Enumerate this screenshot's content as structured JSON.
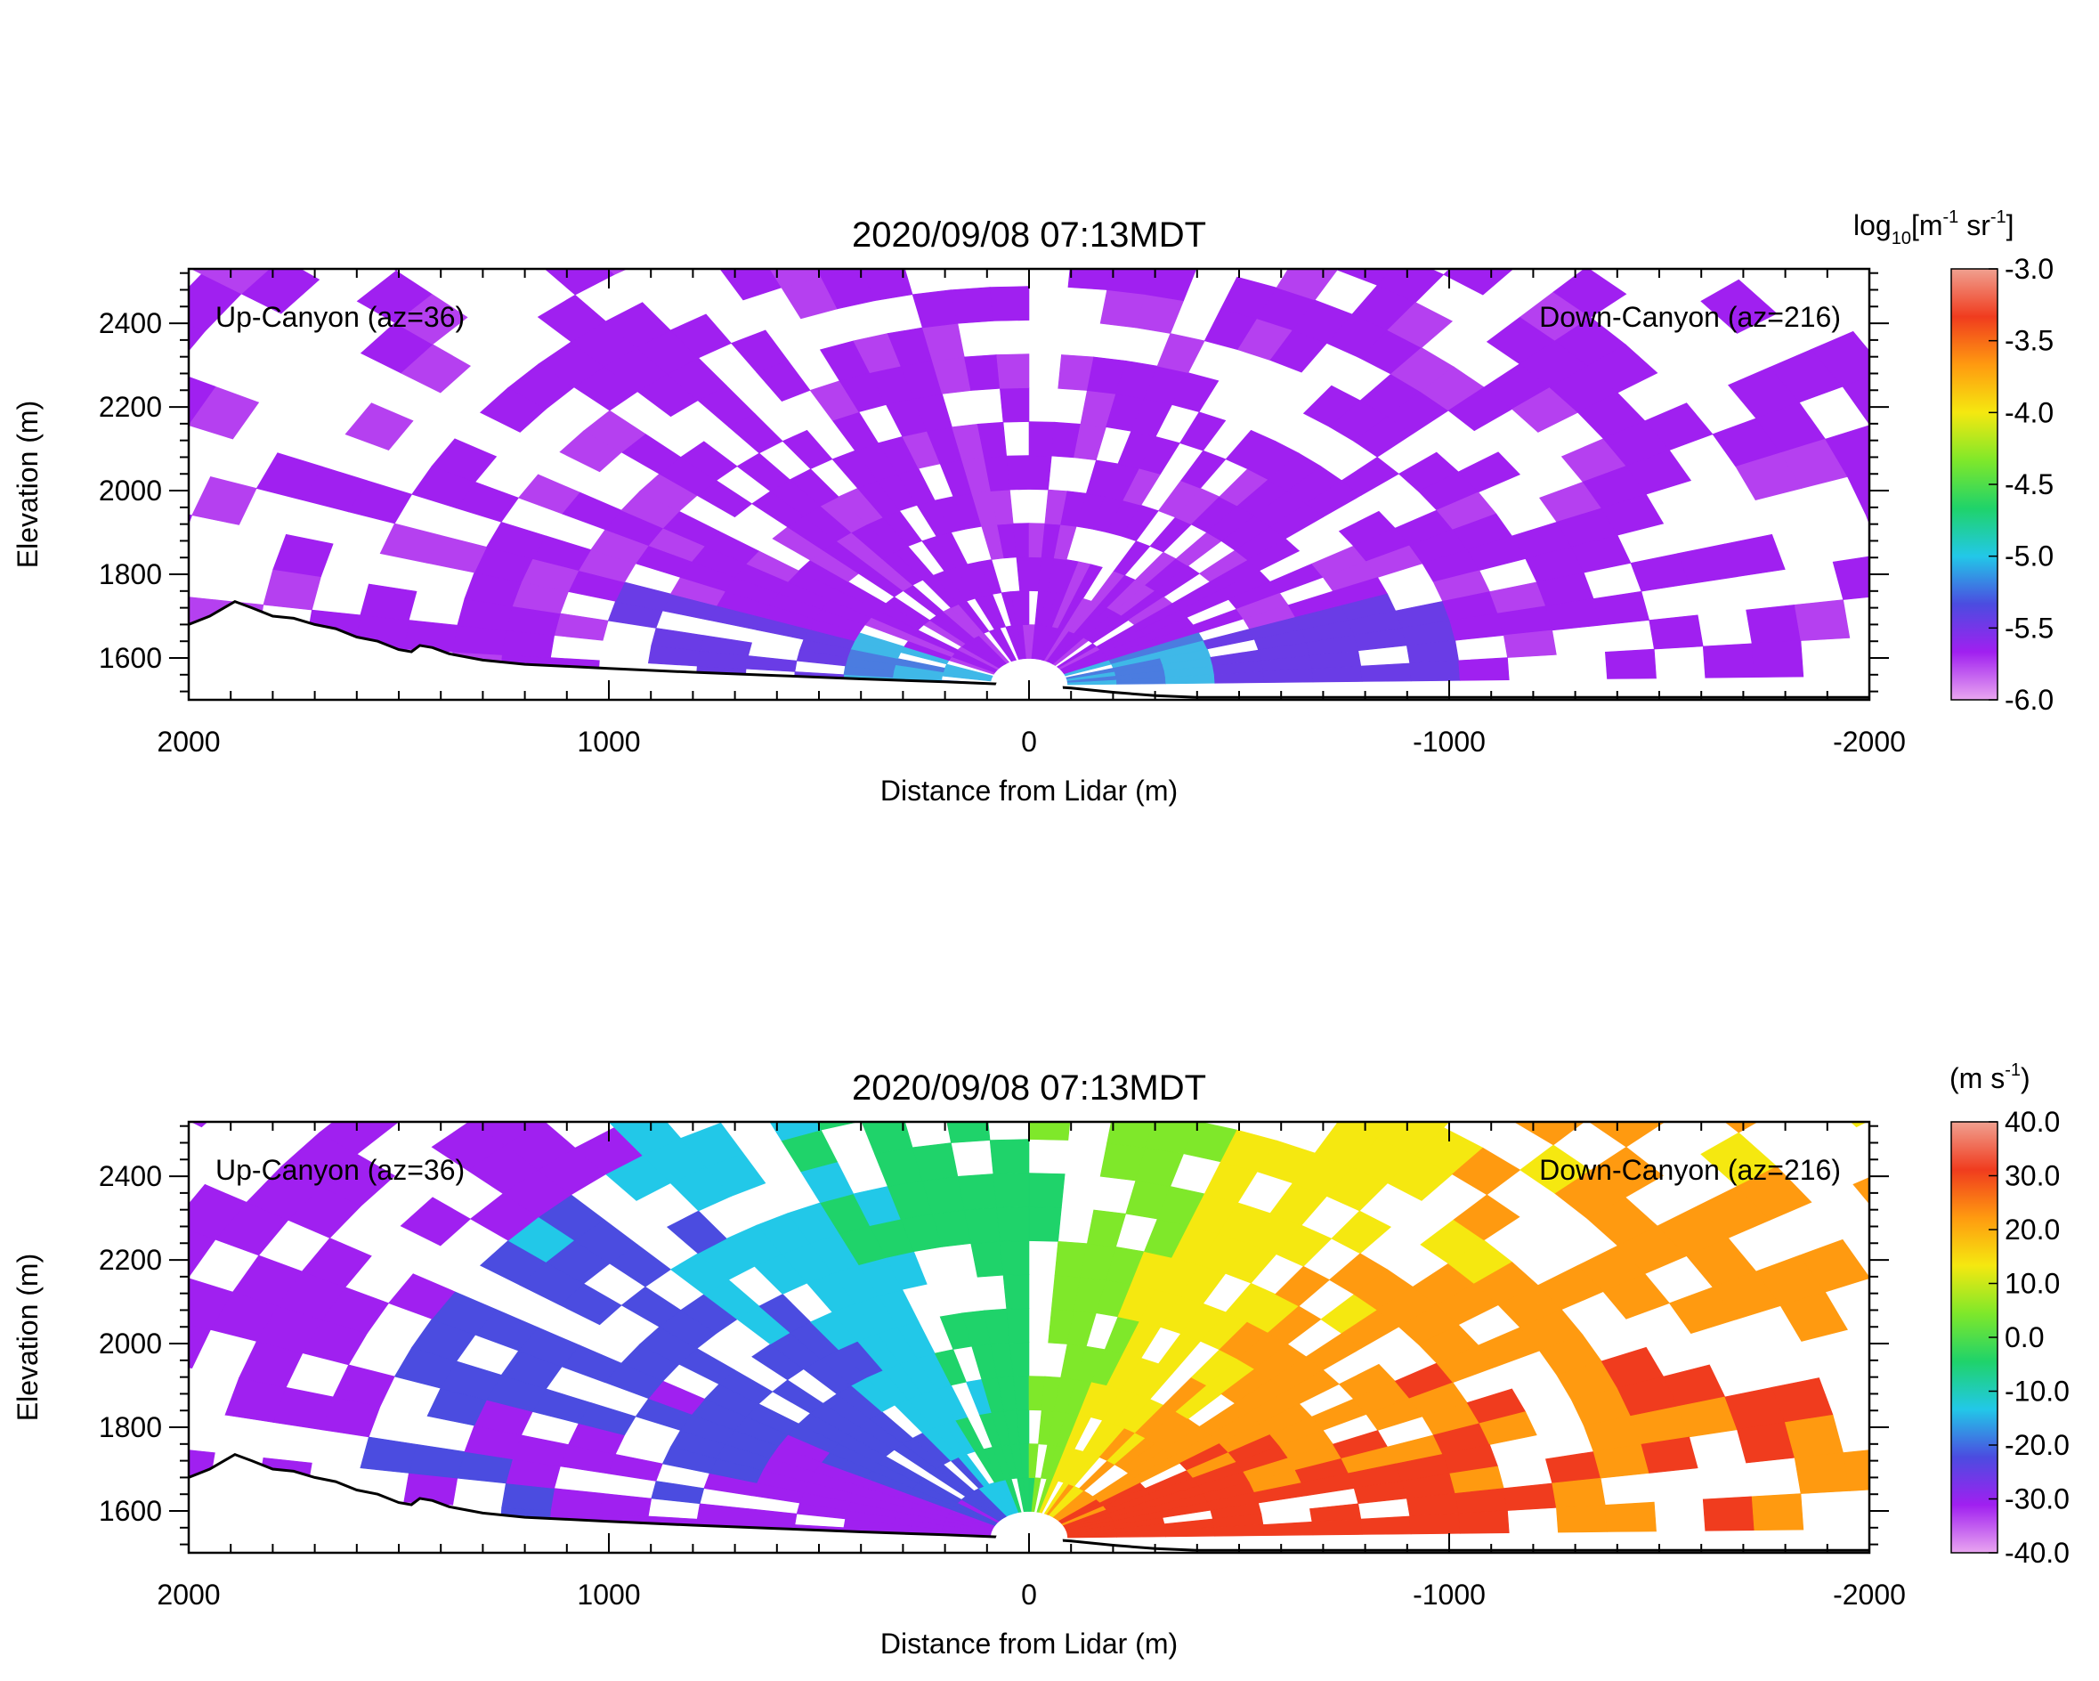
{
  "chart_data": [
    {
      "type": "heatmap",
      "title": "2020/09/08 07:13MDT",
      "xlabel": "Distance from Lidar (m)",
      "ylabel": "Elevation (m)",
      "xlim": [
        2000,
        -2000
      ],
      "ylim": [
        1500,
        2530
      ],
      "x_ticks": [
        "2000",
        "1000",
        "0",
        "-1000",
        "-2000"
      ],
      "x_tick_values": [
        2000,
        1000,
        0,
        -1000,
        -2000
      ],
      "y_ticks": [
        "1600",
        "1800",
        "2000",
        "2200",
        "2400"
      ],
      "y_tick_values": [
        1600,
        1800,
        2000,
        2200,
        2400
      ],
      "annotations": {
        "left": "Up-Canyon (az=36)",
        "right": "Down-Canyon (az=216)"
      },
      "colorbar": {
        "unit_main": "log",
        "unit_sub": "10",
        "unit_rest": "[m",
        "unit_exp1": "-1",
        "unit_mid": " sr",
        "unit_exp2": "-1",
        "unit_close": "]",
        "min": -6.0,
        "max": -3.0,
        "ticks": [
          "-3.0",
          "-3.5",
          "-4.0",
          "-4.5",
          "-5.0",
          "-5.5",
          "-6.0"
        ],
        "tick_values": [
          -3.0,
          -3.5,
          -4.0,
          -4.5,
          -5.0,
          -5.5,
          -6.0
        ],
        "colors": [
          "#e9a6f0",
          "#a020f0",
          "#4b4ce0",
          "#22c8e8",
          "#1fd36a",
          "#7fe82a",
          "#f5e810",
          "#ff9a10",
          "#f03c1e",
          "#f0a090"
        ]
      },
      "terrain": [
        [
          2000,
          1680
        ],
        [
          1950,
          1700
        ],
        [
          1890,
          1735
        ],
        [
          1850,
          1720
        ],
        [
          1800,
          1700
        ],
        [
          1750,
          1695
        ],
        [
          1700,
          1680
        ],
        [
          1650,
          1670
        ],
        [
          1600,
          1650
        ],
        [
          1550,
          1640
        ],
        [
          1500,
          1620
        ],
        [
          1470,
          1615
        ],
        [
          1450,
          1630
        ],
        [
          1420,
          1625
        ],
        [
          1380,
          1610
        ],
        [
          1300,
          1595
        ],
        [
          1200,
          1585
        ],
        [
          1100,
          1580
        ],
        [
          1000,
          1575
        ],
        [
          800,
          1566
        ],
        [
          600,
          1558
        ],
        [
          400,
          1550
        ],
        [
          200,
          1543
        ],
        [
          0,
          1535
        ],
        [
          -100,
          1528
        ],
        [
          -200,
          1518
        ],
        [
          -300,
          1510
        ],
        [
          -400,
          1506
        ],
        [
          -2000,
          1506
        ]
      ],
      "lidar_marker": {
        "x": 0,
        "y": 1535
      }
    },
    {
      "type": "heatmap",
      "title": "2020/09/08 07:13MDT",
      "xlabel": "Distance from Lidar (m)",
      "ylabel": "Elevation (m)",
      "xlim": [
        2000,
        -2000
      ],
      "ylim": [
        1500,
        2530
      ],
      "x_ticks": [
        "2000",
        "1000",
        "0",
        "-1000",
        "-2000"
      ],
      "x_tick_values": [
        2000,
        1000,
        0,
        -1000,
        -2000
      ],
      "y_ticks": [
        "1600",
        "1800",
        "2000",
        "2200",
        "2400"
      ],
      "y_tick_values": [
        1600,
        1800,
        2000,
        2200,
        2400
      ],
      "annotations": {
        "left": "Up-Canyon (az=36)",
        "right": "Down-Canyon (az=216)"
      },
      "colorbar": {
        "unit_main": "(m s",
        "unit_exp1": "-1",
        "unit_close": ")",
        "min": -40.0,
        "max": 40.0,
        "ticks": [
          "40.0",
          "30.0",
          "20.0",
          "10.0",
          "0.0",
          "-10.0",
          "-20.0",
          "-30.0",
          "-40.0"
        ],
        "tick_values": [
          40,
          30,
          20,
          10,
          0,
          -10,
          -20,
          -30,
          -40
        ],
        "colors": [
          "#e9a6f0",
          "#a020f0",
          "#4b4ce0",
          "#22c8e8",
          "#1fd36a",
          "#7fe82a",
          "#f5e810",
          "#ff9a10",
          "#f03c1e",
          "#f0a090"
        ]
      },
      "terrain": [
        [
          2000,
          1680
        ],
        [
          1950,
          1700
        ],
        [
          1890,
          1735
        ],
        [
          1850,
          1720
        ],
        [
          1800,
          1700
        ],
        [
          1750,
          1695
        ],
        [
          1700,
          1680
        ],
        [
          1650,
          1670
        ],
        [
          1600,
          1650
        ],
        [
          1550,
          1640
        ],
        [
          1500,
          1620
        ],
        [
          1470,
          1615
        ],
        [
          1450,
          1630
        ],
        [
          1420,
          1625
        ],
        [
          1380,
          1610
        ],
        [
          1300,
          1595
        ],
        [
          1200,
          1585
        ],
        [
          1100,
          1580
        ],
        [
          1000,
          1575
        ],
        [
          800,
          1566
        ],
        [
          600,
          1558
        ],
        [
          400,
          1550
        ],
        [
          200,
          1543
        ],
        [
          0,
          1535
        ],
        [
          -100,
          1528
        ],
        [
          -200,
          1518
        ],
        [
          -300,
          1510
        ],
        [
          -400,
          1506
        ],
        [
          -2000,
          1506
        ]
      ],
      "lidar_marker": {
        "x": 0,
        "y": 1535
      }
    }
  ]
}
